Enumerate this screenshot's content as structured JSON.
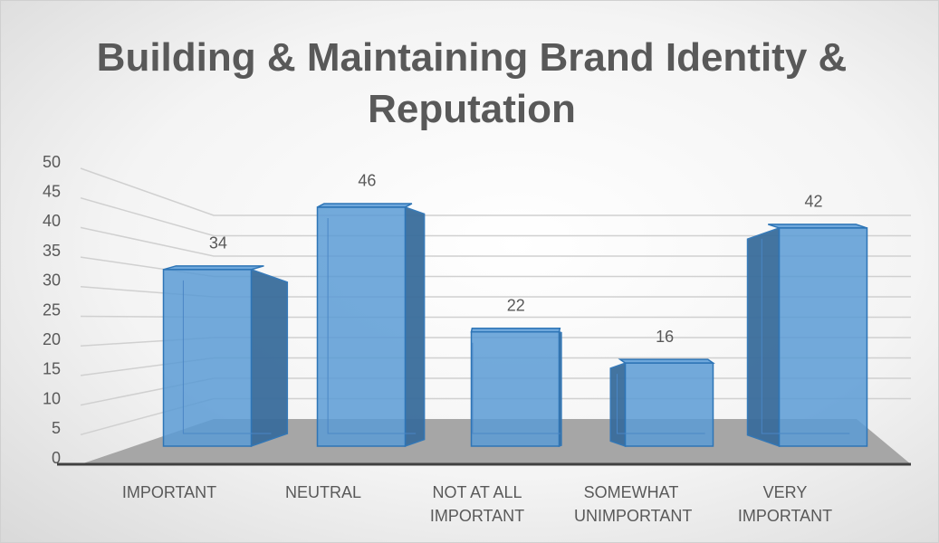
{
  "chart_data": {
    "type": "bar3d",
    "title": "Building & Maintaining Brand Identity & Reputation",
    "categories": [
      "IMPORTANT",
      "NEUTRAL",
      "NOT AT ALL IMPORTANT",
      "SOMEWHAT UNIMPORTANT",
      "VERY IMPORTANT"
    ],
    "values": [
      34,
      46,
      22,
      16,
      42
    ],
    "color": "#5b9bd5",
    "ylim": [
      0,
      50
    ],
    "yticks": [
      0,
      5,
      10,
      15,
      20,
      25,
      30,
      35,
      40,
      45,
      50
    ],
    "grid": true
  }
}
